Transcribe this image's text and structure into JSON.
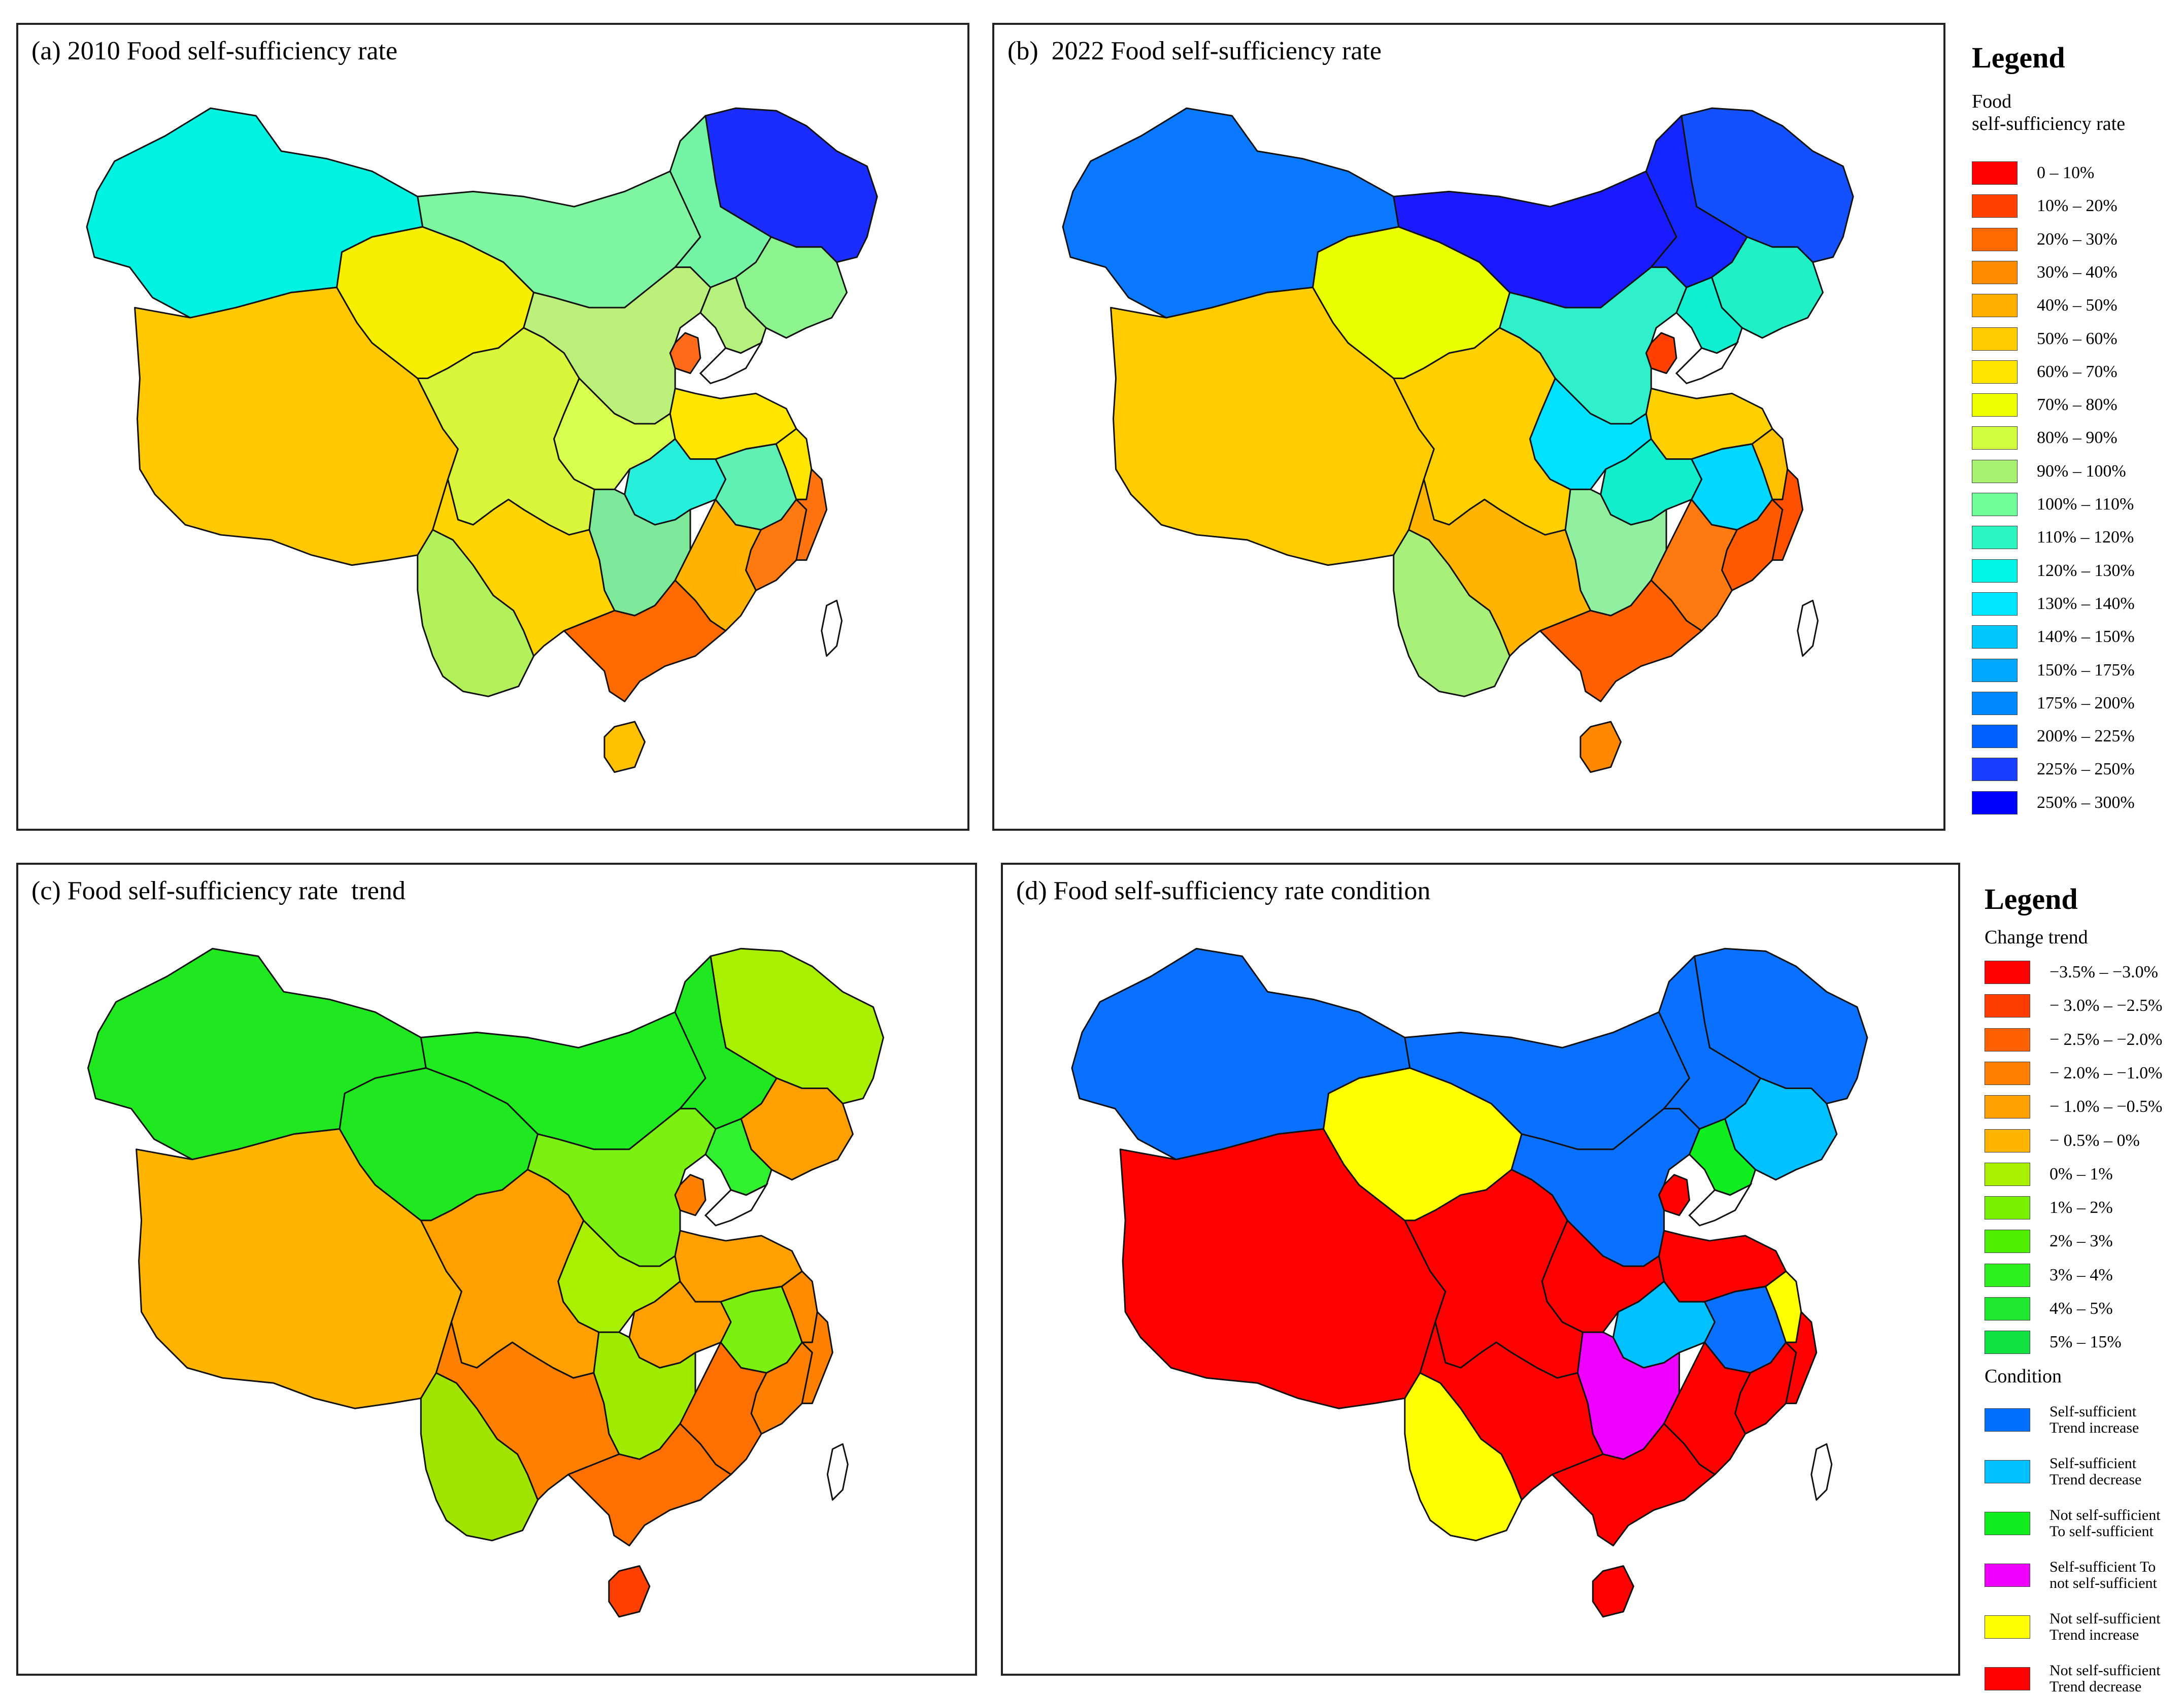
{
  "panels": {
    "a": {
      "title": "(a) 2010 Food self-sufficiency rate"
    },
    "b": {
      "title": "(b)  2022 Food self-sufficiency rate"
    },
    "c": {
      "title": "(c) Food self-sufficiency rate  trend"
    },
    "d": {
      "title": "(d) Food self-sufficiency rate condition"
    }
  },
  "legend_top": {
    "heading": "Legend",
    "subtitle_line1": "Food",
    "subtitle_line2": "self-sufficiency rate",
    "classes": [
      {
        "label": "0 – 10%",
        "color": "#ff0000"
      },
      {
        "label": "10% – 20%",
        "color": "#ff4000"
      },
      {
        "label": "20% – 30%",
        "color": "#ff6a00"
      },
      {
        "label": "30% – 40%",
        "color": "#ff8c00"
      },
      {
        "label": "40% – 50%",
        "color": "#ffb000"
      },
      {
        "label": "50% – 60%",
        "color": "#ffcc00"
      },
      {
        "label": "60% – 70%",
        "color": "#ffe600"
      },
      {
        "label": "70% – 80%",
        "color": "#eeff00"
      },
      {
        "label": "80% – 90%",
        "color": "#d2ff40"
      },
      {
        "label": "90% – 100%",
        "color": "#a8f070"
      },
      {
        "label": "100% – 110%",
        "color": "#70ff9a"
      },
      {
        "label": "110% – 120%",
        "color": "#2af5c0"
      },
      {
        "label": "120% – 130%",
        "color": "#00f5e6"
      },
      {
        "label": "130% – 140%",
        "color": "#00e8ff"
      },
      {
        "label": "140% – 150%",
        "color": "#00c8ff"
      },
      {
        "label": "150% – 175%",
        "color": "#00a8ff"
      },
      {
        "label": "175% – 200%",
        "color": "#0088ff"
      },
      {
        "label": "200% – 225%",
        "color": "#0060ff"
      },
      {
        "label": "225% – 250%",
        "color": "#1a3dff"
      },
      {
        "label": "250% – 300%",
        "color": "#0000ff"
      }
    ]
  },
  "legend_bottom": {
    "heading": "Legend",
    "trend_title": "Change trend",
    "trend_classes": [
      {
        "label": "−3.5% – −3.0%",
        "color": "#ff0000"
      },
      {
        "label": "− 3.0% – −2.5%",
        "color": "#ff3c00"
      },
      {
        "label": "− 2.5% – −2.0%",
        "color": "#ff6000"
      },
      {
        "label": "− 2.0% – −1.0%",
        "color": "#ff8000"
      },
      {
        "label": "− 1.0% – −0.5%",
        "color": "#ffa000"
      },
      {
        "label": "− 0.5% – 0%",
        "color": "#ffb400"
      },
      {
        "label": "0% – 1%",
        "color": "#a8f000"
      },
      {
        "label": "1% – 2%",
        "color": "#78f000"
      },
      {
        "label": "2% – 3%",
        "color": "#4ef000"
      },
      {
        "label": "3% – 4%",
        "color": "#2ef020"
      },
      {
        "label": "4% – 5%",
        "color": "#1ee830"
      },
      {
        "label": "5% – 15%",
        "color": "#10e040"
      }
    ],
    "condition_title": "Condition",
    "condition_classes": [
      {
        "line1": "Self-sufficient",
        "line2": "Trend increase",
        "color": "#0070ff"
      },
      {
        "line1": "Self-sufficient",
        "line2": "Trend decrease",
        "color": "#00c0ff"
      },
      {
        "line1": "Not self-sufficient",
        "line2": "To self-sufficient",
        "color": "#10ee20"
      },
      {
        "line1": "Self-sufficient To",
        "line2": "not self-sufficient",
        "color": "#ee00ff"
      },
      {
        "line1": "Not self-sufficient",
        "line2": "Trend increase",
        "color": "#ffff00"
      },
      {
        "line1": "Not self-sufficient",
        "line2": "Trend decrease",
        "color": "#ff0000"
      }
    ]
  },
  "map_regions": {
    "a": {
      "NE1": "#1b2cff",
      "NE2": "#73f5a5",
      "NE3": "#8df58f",
      "NE4": "#b6f07e",
      "N1": "#7ef5a0",
      "N2": "#ff6a1a",
      "N3": "#ffe600",
      "C1": "#bdf07a",
      "C2": "#d6ff50",
      "C3": "#26f0dc",
      "C4": "#60f0b4",
      "C5": "#7ee89a",
      "C6": "#ff7a10",
      "C7": "#ffb200",
      "W1": "#00f2e0",
      "W2": "#ffc800",
      "W3": "#f6f000",
      "W4": "#b2f05c",
      "S1": "#d9f53c",
      "S2": "#ffd400",
      "S3": "#ff6a00",
      "S4": "#ffc000",
      "E1": "#ffe600",
      "E2": "#ff7410"
    },
    "b": {
      "NE1": "#1550ff",
      "NE2": "#1525ff",
      "NE3": "#20f0c6",
      "NE4": "#10f0d0",
      "N1": "#1a1aff",
      "N2": "#ff4000",
      "N3": "#ffd000",
      "C1": "#30f0cc",
      "C2": "#00e0ff",
      "C3": "#10eecc",
      "C4": "#00d8ff",
      "C5": "#90f0a0",
      "C6": "#ff5a00",
      "C7": "#ff7a10",
      "W1": "#0a78ff",
      "W2": "#ffcc00",
      "W3": "#eaff00",
      "W4": "#a8f07a",
      "S1": "#ffd000",
      "S2": "#ffb400",
      "S3": "#ff6000",
      "S4": "#ff8800",
      "E1": "#ffc000",
      "E2": "#ff5000"
    },
    "c": {
      "NE1": "#a8f000",
      "NE2": "#20e820",
      "NE3": "#ffa000",
      "NE4": "#30f030",
      "N1": "#20ea20",
      "N2": "#ff8000",
      "N3": "#ffa000",
      "C1": "#7cf010",
      "C2": "#a8f000",
      "C3": "#ffa000",
      "C4": "#7cf010",
      "C5": "#a0ec00",
      "C6": "#ff8000",
      "C7": "#ff7000",
      "W1": "#20e820",
      "W2": "#ffb400",
      "W3": "#20e820",
      "W4": "#a0e400",
      "S1": "#ffa000",
      "S2": "#ff8000",
      "S3": "#ff7000",
      "S4": "#ff4000",
      "E1": "#ff8a00",
      "E2": "#ff8000"
    },
    "d": {
      "NE1": "#0a70ff",
      "NE2": "#0a70ff",
      "NE3": "#00c0ff",
      "NE4": "#10ee20",
      "N1": "#0a70ff",
      "N2": "#ff0000",
      "N3": "#ff0000",
      "C1": "#0a70ff",
      "C2": "#ff0000",
      "C3": "#00c0ff",
      "C4": "#0a70ff",
      "C5": "#ee00ff",
      "C6": "#ff0000",
      "C7": "#ff0000",
      "W1": "#0a70ff",
      "W2": "#ff0000",
      "W3": "#ffff00",
      "W4": "#ffff00",
      "S1": "#ff0000",
      "S2": "#ff0000",
      "S3": "#ff0000",
      "S4": "#ff0000",
      "E1": "#ffff00",
      "E2": "#ff0000"
    }
  }
}
